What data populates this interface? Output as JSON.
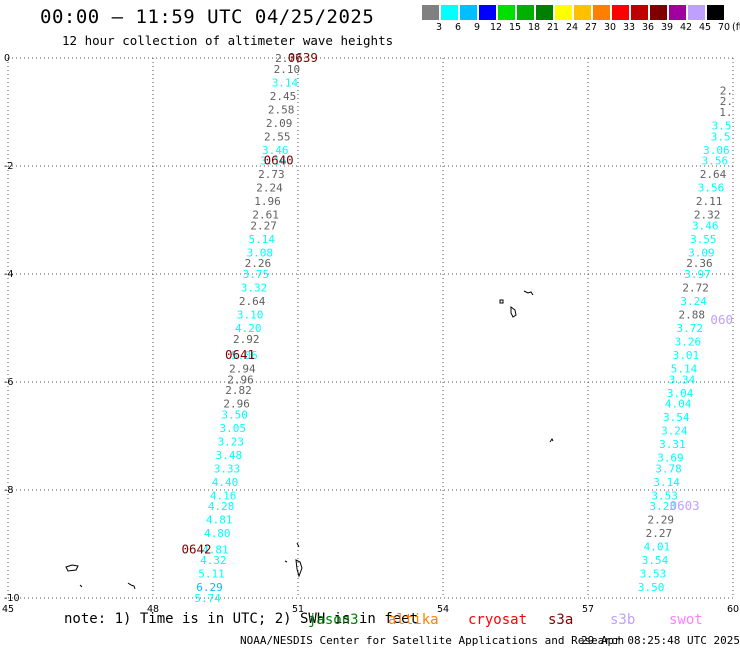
{
  "title": "00:00 – 11:59 UTC 04/25/2025",
  "subtitle": "12 hour collection of altimeter wave heights",
  "legend": {
    "labels": [
      "3",
      "6",
      "9",
      "12",
      "15",
      "18",
      "21",
      "24",
      "27",
      "30",
      "33",
      "36",
      "39",
      "42",
      "45",
      "70"
    ],
    "colors": [
      "#808080",
      "#00ffff",
      "#00bfff",
      "#0000ff",
      "#00e000",
      "#00b000",
      "#008000",
      "#ffff00",
      "#ffc000",
      "#ff8000",
      "#ff0000",
      "#c00000",
      "#800000",
      "#a000a0",
      "#c0a0ff",
      "#000000"
    ],
    "unit": "(ft)"
  },
  "chart_data": {
    "type": "map",
    "x_ticks": [
      "45",
      "48",
      "51",
      "54",
      "57",
      "60"
    ],
    "y_ticks": [
      "0",
      "-2",
      "-4",
      "-6",
      "-8",
      "-10"
    ],
    "lon_range": [
      45,
      60
    ],
    "lat_range": [
      -10,
      0
    ],
    "gridlines": true,
    "passes": [
      {
        "id": "pass-west",
        "time_labels": [
          {
            "text": "0639",
            "lon": 51.1,
            "lat": 0.0
          },
          {
            "text": "0640",
            "lon": 50.6,
            "lat": -1.9
          },
          {
            "text": "0641",
            "lon": 49.8,
            "lat": -5.5
          },
          {
            "text": "0642",
            "lon": 48.9,
            "lat": -9.1
          }
        ],
        "obs": [
          {
            "v": "2.77",
            "lon": 50.8,
            "lat": 0.0
          },
          {
            "v": "2.10",
            "lon": 50.77,
            "lat": -0.2
          },
          {
            "v": "3.14",
            "lon": 50.73,
            "lat": -0.45
          },
          {
            "v": "2.45",
            "lon": 50.69,
            "lat": -0.7
          },
          {
            "v": "2.58",
            "lon": 50.65,
            "lat": -0.95
          },
          {
            "v": "2.09",
            "lon": 50.61,
            "lat": -1.2
          },
          {
            "v": "2.55",
            "lon": 50.57,
            "lat": -1.45
          },
          {
            "v": "3.46",
            "lon": 50.53,
            "lat": -1.7
          },
          {
            "v": "3.16",
            "lon": 50.49,
            "lat": -1.9
          },
          {
            "v": "2.73",
            "lon": 50.45,
            "lat": -2.15
          },
          {
            "v": "2.24",
            "lon": 50.41,
            "lat": -2.4
          },
          {
            "v": "1.96",
            "lon": 50.37,
            "lat": -2.65
          },
          {
            "v": "2.61",
            "lon": 50.33,
            "lat": -2.9
          },
          {
            "v": "2.27",
            "lon": 50.29,
            "lat": -3.1
          },
          {
            "v": "5.14",
            "lon": 50.25,
            "lat": -3.35
          },
          {
            "v": "3.08",
            "lon": 50.21,
            "lat": -3.6
          },
          {
            "v": "2.26",
            "lon": 50.17,
            "lat": -3.8
          },
          {
            "v": "3.75",
            "lon": 50.13,
            "lat": -4.0
          },
          {
            "v": "3.32",
            "lon": 50.09,
            "lat": -4.25
          },
          {
            "v": "2.64",
            "lon": 50.05,
            "lat": -4.5
          },
          {
            "v": "3.10",
            "lon": 50.01,
            "lat": -4.75
          },
          {
            "v": "4.20",
            "lon": 49.97,
            "lat": -5.0
          },
          {
            "v": "2.92",
            "lon": 49.93,
            "lat": -5.2
          },
          {
            "v": "5.06",
            "lon": 49.89,
            "lat": -5.5
          },
          {
            "v": "2.94",
            "lon": 49.85,
            "lat": -5.75
          },
          {
            "v": "2.96",
            "lon": 49.81,
            "lat": -5.95
          },
          {
            "v": "2.82",
            "lon": 49.77,
            "lat": -6.15
          },
          {
            "v": "2.96",
            "lon": 49.73,
            "lat": -6.4
          },
          {
            "v": "3.50",
            "lon": 49.69,
            "lat": -6.6
          },
          {
            "v": "3.05",
            "lon": 49.65,
            "lat": -6.85
          },
          {
            "v": "3.23",
            "lon": 49.61,
            "lat": -7.1
          },
          {
            "v": "3.48",
            "lon": 49.57,
            "lat": -7.35
          },
          {
            "v": "3.33",
            "lon": 49.53,
            "lat": -7.6
          },
          {
            "v": "4.40",
            "lon": 49.49,
            "lat": -7.85
          },
          {
            "v": "4.16",
            "lon": 49.45,
            "lat": -8.1
          },
          {
            "v": "4.28",
            "lon": 49.41,
            "lat": -8.3
          },
          {
            "v": "4.81",
            "lon": 49.37,
            "lat": -8.55
          },
          {
            "v": "4.80",
            "lon": 49.33,
            "lat": -8.8
          },
          {
            "v": "4.81",
            "lon": 49.29,
            "lat": -9.1
          },
          {
            "v": "4.32",
            "lon": 49.25,
            "lat": -9.3
          },
          {
            "v": "5.11",
            "lon": 49.21,
            "lat": -9.55
          },
          {
            "v": "6.29",
            "lon": 49.17,
            "lat": -9.8
          },
          {
            "v": "5.74",
            "lon": 49.13,
            "lat": -10.0
          }
        ]
      },
      {
        "id": "pass-east",
        "time_labels": [
          {
            "text": "0603",
            "lon": 59.0,
            "lat": -8.3
          },
          {
            "text": "060",
            "lon": 60.0,
            "lat": -4.85
          }
        ],
        "obs": [
          {
            "v": "2.",
            "lon": 60.0,
            "lat": -0.6
          },
          {
            "v": "2.",
            "lon": 60.0,
            "lat": -0.8
          },
          {
            "v": "1.",
            "lon": 59.99,
            "lat": -1.0
          },
          {
            "v": "3.5",
            "lon": 59.97,
            "lat": -1.25
          },
          {
            "v": "3.5",
            "lon": 59.95,
            "lat": -1.45
          },
          {
            "v": "3.06",
            "lon": 59.93,
            "lat": -1.7
          },
          {
            "v": "3.56",
            "lon": 59.9,
            "lat": -1.9
          },
          {
            "v": "2.64",
            "lon": 59.86,
            "lat": -2.15
          },
          {
            "v": "3.56",
            "lon": 59.82,
            "lat": -2.4
          },
          {
            "v": "2.11",
            "lon": 59.78,
            "lat": -2.65
          },
          {
            "v": "2.32",
            "lon": 59.74,
            "lat": -2.9
          },
          {
            "v": "3.46",
            "lon": 59.7,
            "lat": -3.1
          },
          {
            "v": "3.55",
            "lon": 59.66,
            "lat": -3.35
          },
          {
            "v": "3.09",
            "lon": 59.62,
            "lat": -3.6
          },
          {
            "v": "2.36",
            "lon": 59.58,
            "lat": -3.8
          },
          {
            "v": "3.97",
            "lon": 59.54,
            "lat": -4.0
          },
          {
            "v": "2.72",
            "lon": 59.5,
            "lat": -4.25
          },
          {
            "v": "3.24",
            "lon": 59.46,
            "lat": -4.5
          },
          {
            "v": "2.88",
            "lon": 59.42,
            "lat": -4.75
          },
          {
            "v": "3.72",
            "lon": 59.38,
            "lat": -5.0
          },
          {
            "v": "3.26",
            "lon": 59.34,
            "lat": -5.25
          },
          {
            "v": "3.01",
            "lon": 59.3,
            "lat": -5.5
          },
          {
            "v": "5.14",
            "lon": 59.26,
            "lat": -5.75
          },
          {
            "v": "3.34",
            "lon": 59.22,
            "lat": -5.95
          },
          {
            "v": "3.04",
            "lon": 59.18,
            "lat": -6.2
          },
          {
            "v": "4.04",
            "lon": 59.14,
            "lat": -6.4
          },
          {
            "v": "3.54",
            "lon": 59.1,
            "lat": -6.65
          },
          {
            "v": "3.24",
            "lon": 59.06,
            "lat": -6.9
          },
          {
            "v": "3.31",
            "lon": 59.02,
            "lat": -7.15
          },
          {
            "v": "3.69",
            "lon": 58.98,
            "lat": -7.4
          },
          {
            "v": "3.78",
            "lon": 58.94,
            "lat": -7.6
          },
          {
            "v": "3.14",
            "lon": 58.9,
            "lat": -7.85
          },
          {
            "v": "3.53",
            "lon": 58.86,
            "lat": -8.1
          },
          {
            "v": "3.23",
            "lon": 58.82,
            "lat": -8.3
          },
          {
            "v": "2.29",
            "lon": 58.78,
            "lat": -8.55
          },
          {
            "v": "2.27",
            "lon": 58.74,
            "lat": -8.8
          },
          {
            "v": "4.01",
            "lon": 58.7,
            "lat": -9.05
          },
          {
            "v": "3.54",
            "lon": 58.66,
            "lat": -9.3
          },
          {
            "v": "3.53",
            "lon": 58.62,
            "lat": -9.55
          },
          {
            "v": "3.50",
            "lon": 58.58,
            "lat": -9.8
          }
        ]
      }
    ]
  },
  "footer": {
    "note": "note: 1) Time is in UTC; 2) SWH is in feet",
    "satellites": [
      {
        "name": "jason3",
        "color": "#008000"
      },
      {
        "name": "altika",
        "color": "#ff8000"
      },
      {
        "name": "cryosat",
        "color": "#ff0000"
      },
      {
        "name": "s3a",
        "color": "#800000"
      },
      {
        "name": "s3b",
        "color": "#c0a0ff"
      },
      {
        "name": "swot",
        "color": "#ff80ff"
      }
    ],
    "credit": "NOAA/NESDIS Center for Satellite Applications and Research",
    "timestamp": "29 Apr 08:25:48 UTC 2025"
  }
}
